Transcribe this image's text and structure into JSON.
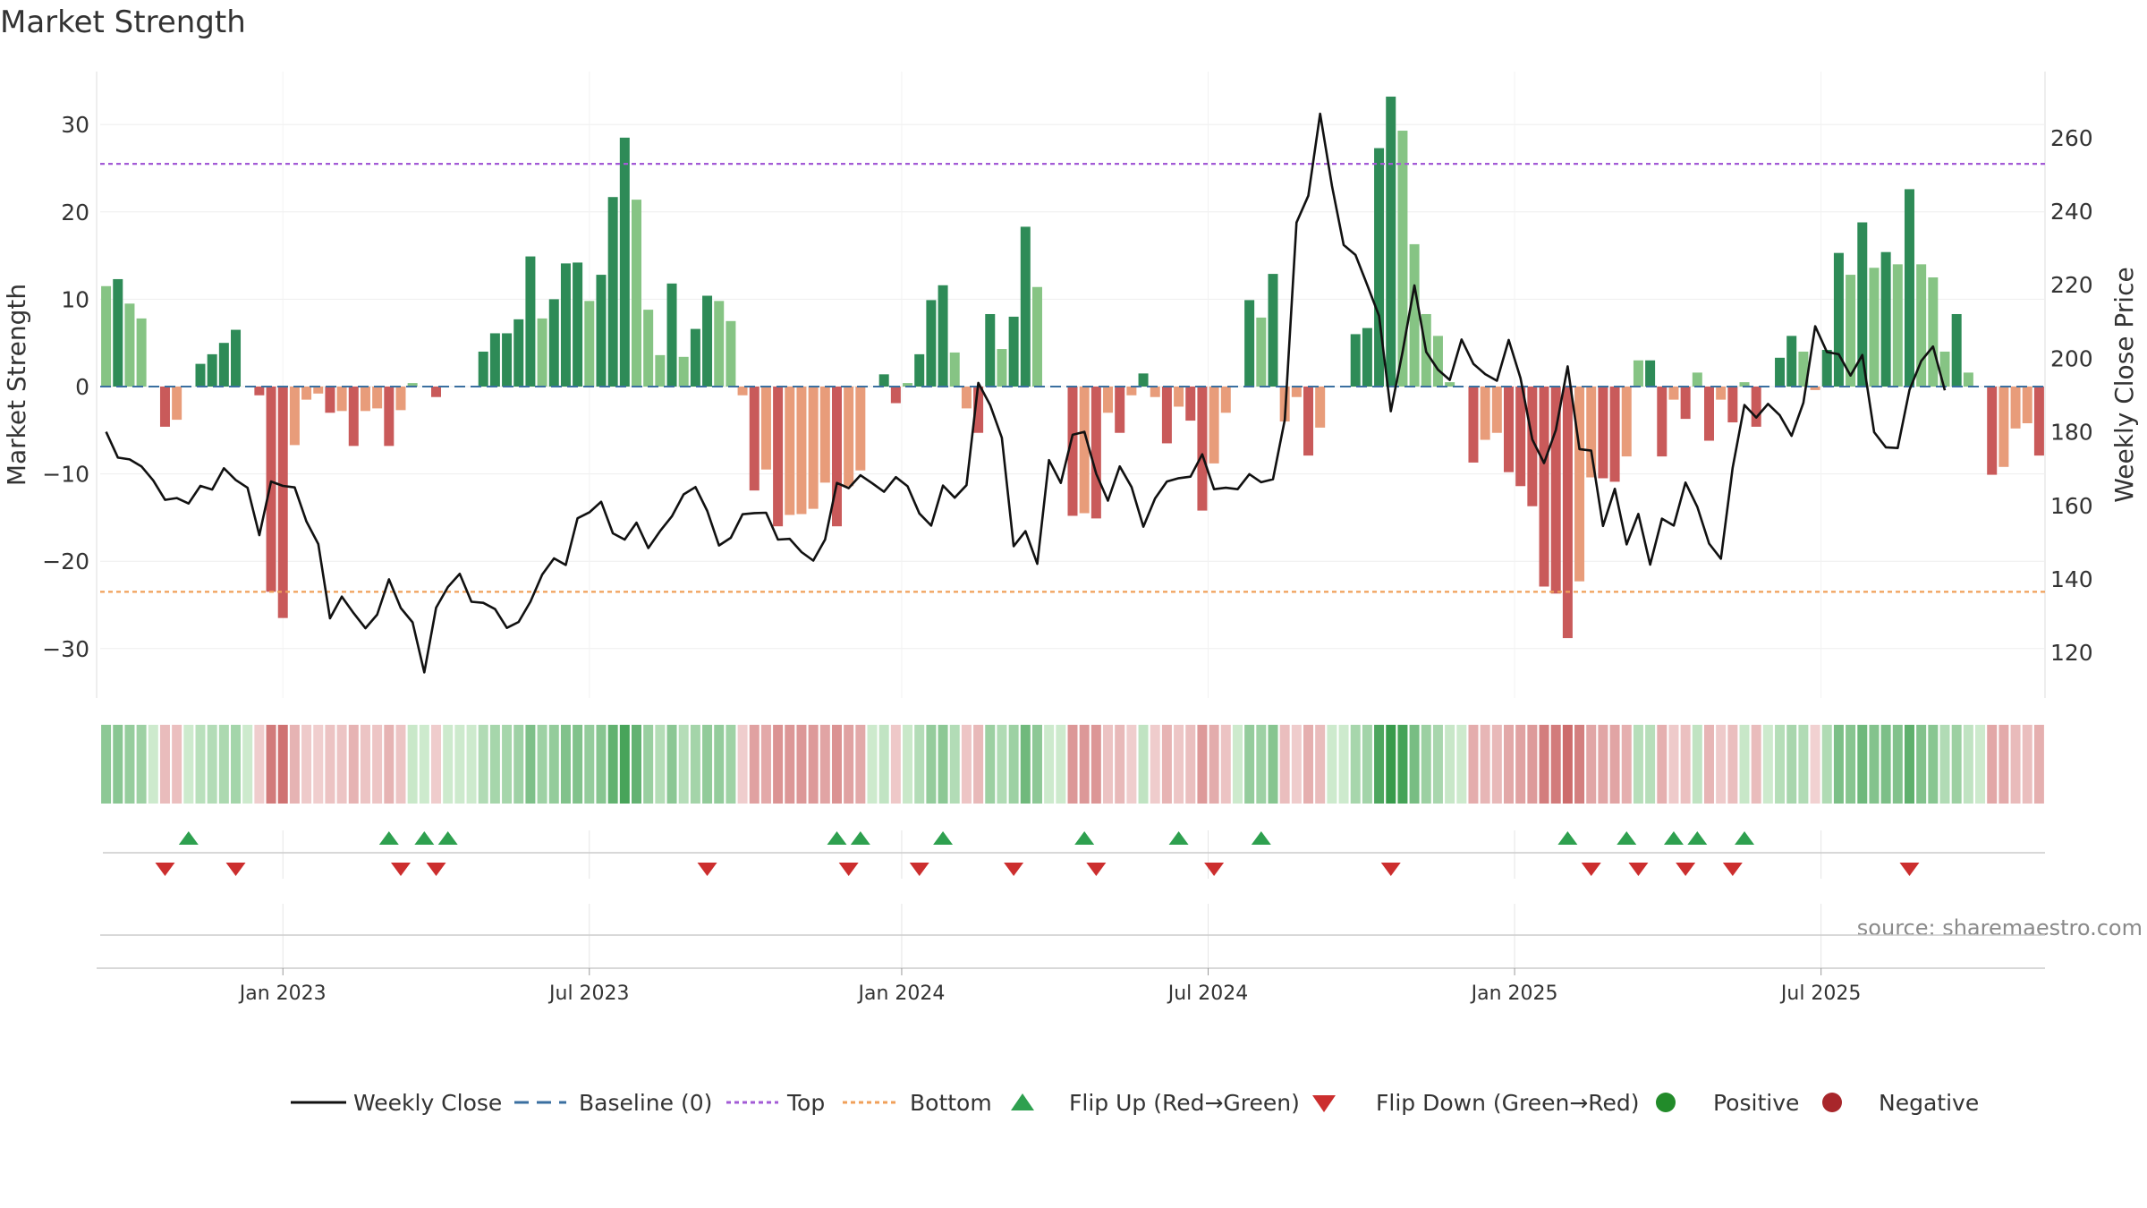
{
  "chart_data": {
    "type": "bar+line",
    "title": "Market Strength",
    "y_left_label": "Market Strength",
    "y_right_label": "Weekly Close Price",
    "y_left_ticks": [
      30,
      20,
      10,
      0,
      -10,
      -20,
      -30
    ],
    "y_left_range": [
      -35,
      35
    ],
    "y_right_ticks": [
      260,
      240,
      220,
      200,
      180,
      160,
      140,
      120
    ],
    "y_right_range": [
      107.9,
      271.5
    ],
    "x_tick_labels": [
      "Jan 2023",
      "Jul 2023",
      "Jan 2024",
      "Jul 2024",
      "Jan 2025",
      "Jul 2025"
    ],
    "x_tick_weeks": [
      15,
      41,
      67.5,
      93.5,
      119.5,
      145.5
    ],
    "top_level": 25.5,
    "bottom_level": -23.5,
    "baseline": 0,
    "strength": [
      11.5,
      12.3,
      9.5,
      7.8,
      0,
      -4.6,
      -3.8,
      0,
      2.6,
      3.7,
      5,
      6.5,
      0,
      -1,
      -23.5,
      -26.5,
      -6.7,
      -1.5,
      -0.8,
      -3,
      -2.8,
      -6.8,
      -2.8,
      -2.5,
      -6.8,
      -2.7,
      0.4,
      0,
      -1.2,
      0,
      0,
      0,
      4,
      6.1,
      6.1,
      7.7,
      14.9,
      7.8,
      10,
      14.1,
      14.2,
      9.8,
      12.8,
      21.7,
      28.5,
      21.4,
      8.8,
      3.6,
      11.8,
      3.4,
      6.6,
      10.4,
      9.8,
      7.5,
      -1,
      -11.9,
      -9.5,
      -16,
      -14.7,
      -14.6,
      -14,
      -11,
      -16,
      -11.4,
      -9.6,
      0,
      1.4,
      -1.9,
      0.4,
      3.7,
      9.9,
      11.6,
      3.9,
      -2.5,
      -5.3,
      8.3,
      4.3,
      8,
      18.3,
      11.4,
      0,
      0,
      -14.8,
      -14.5,
      -15.1,
      -3,
      -5.3,
      -1,
      1.5,
      -1.2,
      -6.5,
      -2.3,
      -3.9,
      -14.2,
      -8.8,
      -3,
      0,
      9.9,
      7.9,
      12.9,
      -4,
      -1.2,
      -7.9,
      -4.7,
      0,
      0,
      6,
      6.7,
      27.3,
      33.2,
      29.3,
      16.3,
      8.3,
      5.8,
      0.5,
      0,
      -8.7,
      -6.1,
      -5.3,
      -9.8,
      -11.4,
      -13.7,
      -22.9,
      -23.7,
      -28.8,
      -22.3,
      -10.4,
      -10.5,
      -10.9,
      -8,
      3,
      3,
      -8,
      -1.5,
      -3.7,
      1.6,
      -6.2,
      -1.5,
      -4.1,
      0.5,
      -4.6,
      0,
      3.3,
      5.8,
      4,
      -0.4,
      4.2,
      15.3,
      12.8,
      18.8,
      13.6,
      15.4,
      14,
      22.6,
      14,
      12.5,
      4,
      8.3,
      1.6,
      0,
      -10.1,
      -9.2,
      -4.8,
      -4.2,
      -7.9
    ],
    "weekly_close": [
      180,
      173,
      172.5,
      170.6,
      166.8,
      161.5,
      162,
      160.5,
      165.3,
      164.3,
      170.1,
      166.9,
      164.8,
      151.9,
      166.5,
      165.3,
      164.9,
      155.6,
      149.5,
      129.3,
      135.2,
      130.7,
      126.6,
      130.3,
      139.9,
      132.1,
      128.2,
      114.6,
      132.2,
      137.8,
      141.4,
      133.8,
      133.5,
      131.8,
      126.7,
      128.3,
      133.8,
      141.2,
      145.6,
      143.8,
      156.5,
      158.1,
      161,
      152.4,
      150.7,
      155.3,
      148.4,
      153,
      157,
      163,
      165,
      158.5,
      149.1,
      151.2,
      157.6,
      157.9,
      158,
      150.7,
      150.9,
      147.3,
      145,
      150.7,
      166.1,
      164.7,
      168.2,
      166,
      163.7,
      167.7,
      165.2,
      157.8,
      154.5,
      165.4,
      162.1,
      165.5,
      193.3,
      187.3,
      178.4,
      148.9,
      153,
      144.1,
      172.3,
      166.1,
      179.2,
      180,
      168.6,
      161.3,
      170.6,
      165,
      154.2,
      161.9,
      166.5,
      167.4,
      167.8,
      173.9,
      164.4,
      164.8,
      164.4,
      168.5,
      166.3,
      167.1,
      183.3,
      236.9,
      244.2,
      266.5,
      246.9,
      230.8,
      228.1,
      219.9,
      211.5,
      185.6,
      201.8,
      219.8,
      201.7,
      196.9,
      194.1,
      205.1,
      198.5,
      195.7,
      193.9,
      205,
      194.6,
      177.9,
      171.5,
      180.5,
      197.8,
      175.3,
      174.9,
      154.4,
      164.5,
      149.4,
      157.7,
      143.9,
      156.4,
      154.5,
      166.2,
      159.6,
      149.6,
      145.5,
      170.2,
      187.3,
      183.9,
      187.6,
      184.5,
      178.9,
      187.9,
      208.7,
      201.7,
      201.1,
      195.3,
      200.9,
      179.9,
      175.8,
      175.6,
      191.4,
      199.3,
      203.2,
      191.3
    ],
    "flip_up_weeks": [
      7,
      24,
      27,
      29,
      62,
      64,
      71,
      83,
      91,
      98,
      124,
      129,
      133,
      135,
      139
    ],
    "flip_down_weeks": [
      5,
      11,
      25,
      28,
      51,
      63,
      69,
      77,
      84,
      94,
      109,
      126,
      130,
      134,
      138,
      153
    ],
    "legend": [
      "Weekly Close",
      "Baseline (0)",
      "Top",
      "Bottom",
      "Flip Up (Red→Green)",
      "Flip Down (Green→Red)",
      "Positive",
      "Negative"
    ],
    "source_text": "source: sharemaestro.com",
    "colors": {
      "pos_dark": "#2e8b57",
      "pos_light": "#86c484",
      "neg_dark": "#c95a5a",
      "neg_light": "#e89c7a",
      "line": "#111111",
      "baseline": "#3a6fa0",
      "top": "#a35bd6",
      "bottom": "#f0a05a",
      "flip_up": "#2ea04f",
      "flip_down": "#cc2e2e",
      "positive_dot": "#228b2a",
      "negative_dot": "#a8262b"
    }
  }
}
